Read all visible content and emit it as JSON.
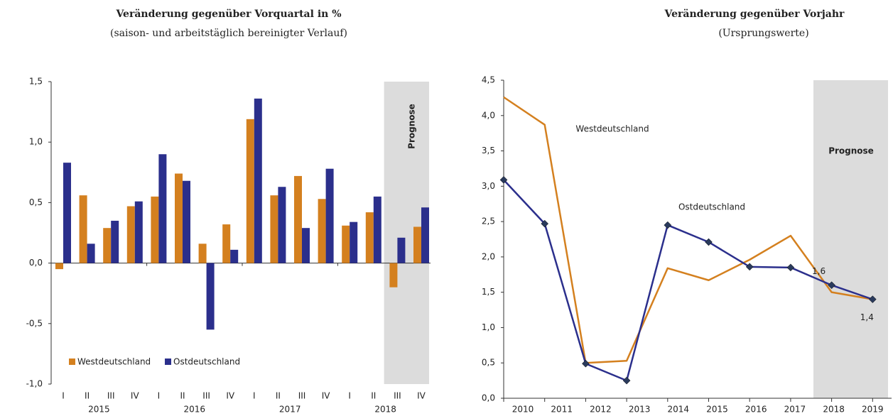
{
  "chart_data": [
    {
      "type": "bar",
      "title": "Veränderung gegenüber Vorquartal in %",
      "subtitle": "(saison- und arbeitstäglich bereinigter Verlauf)",
      "categories": [
        "I",
        "II",
        "III",
        "IV",
        "I",
        "II",
        "III",
        "IV",
        "I",
        "II",
        "III",
        "IV",
        "I",
        "II",
        "III",
        "IV"
      ],
      "years": [
        "2015",
        "2016",
        "2017",
        "2018"
      ],
      "series": [
        {
          "name": "Westdeutschland",
          "color": "#d4801f",
          "values": [
            -0.05,
            0.56,
            0.29,
            0.47,
            0.55,
            0.74,
            0.16,
            0.32,
            1.19,
            0.56,
            0.72,
            0.53,
            0.31,
            0.42,
            -0.2,
            0.3
          ]
        },
        {
          "name": "Ostdeutschland",
          "color": "#2b2f8c",
          "values": [
            0.83,
            0.16,
            0.35,
            0.51,
            0.9,
            0.68,
            -0.55,
            0.11,
            1.36,
            0.63,
            0.29,
            0.78,
            0.34,
            0.55,
            0.21,
            0.46
          ]
        }
      ],
      "ylim": [
        -1.0,
        1.5
      ],
      "yticks": [
        {
          "value": -1.0,
          "label": "-1,0"
        },
        {
          "value": -0.5,
          "label": "-0,5"
        },
        {
          "value": 0,
          "label": "0,0"
        },
        {
          "value": 0.5,
          "label": "0,5"
        },
        {
          "value": 1.0,
          "label": "1,0"
        },
        {
          "value": 1.5,
          "label": "1,5"
        }
      ],
      "annotation": "Prognose",
      "legend": "bottom-left"
    },
    {
      "type": "line",
      "title": "Veränderung gegenüber Vorjahr",
      "subtitle": "(Ursprungswerte)",
      "categories": [
        "2010",
        "2011",
        "2012",
        "2013",
        "2014",
        "2015",
        "2016",
        "2017",
        "2018",
        "2019"
      ],
      "series": [
        {
          "name": "Westdeutschland",
          "color": "#d4801f",
          "values": [
            4.26,
            3.87,
            0.5,
            0.53,
            1.84,
            1.67,
            1.96,
            2.3,
            1.5,
            1.4
          ]
        },
        {
          "name": "Ostdeutschland",
          "color": "#2b2f8c",
          "values": [
            3.09,
            2.47,
            0.49,
            0.25,
            2.45,
            2.21,
            1.86,
            1.85,
            1.6,
            1.4
          ],
          "markers": true,
          "value_labels": [
            null,
            null,
            null,
            null,
            null,
            null,
            null,
            null,
            "1,6",
            "1,4"
          ]
        }
      ],
      "ylim": [
        0,
        4.5
      ],
      "yticks": [
        {
          "value": 0,
          "label": "0,0"
        },
        {
          "value": 0.5,
          "label": "0,5"
        },
        {
          "value": 1.0,
          "label": "1,0"
        },
        {
          "value": 1.5,
          "label": "1,5"
        },
        {
          "value": 2.0,
          "label": "2,0"
        },
        {
          "value": 2.5,
          "label": "2,5"
        },
        {
          "value": 3.0,
          "label": "3,0"
        },
        {
          "value": 3.5,
          "label": "3,5"
        },
        {
          "value": 4.0,
          "label": "4,0"
        },
        {
          "value": 4.5,
          "label": "4,5"
        }
      ],
      "annotation": "Prognose"
    }
  ]
}
